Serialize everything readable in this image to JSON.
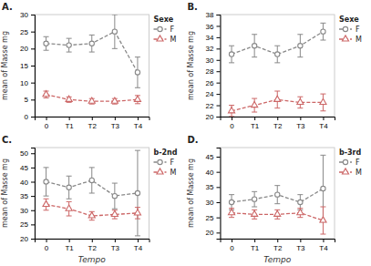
{
  "chart_data": [
    {
      "type": "line",
      "title": "A.",
      "y_label": "mean of Masse mg",
      "legend_title": "Sexe",
      "legend": "upper right",
      "grid": false,
      "categories": [
        "0",
        "T1",
        "T2",
        "T3",
        "T4"
      ],
      "ylim": [
        0,
        30
      ],
      "yticks": [
        0,
        5,
        10,
        15,
        20,
        25,
        30
      ],
      "series": [
        {
          "name": "F",
          "color": "#888888",
          "marker": "circle",
          "line_style": "dashed",
          "values": [
            21.5,
            21.0,
            21.5,
            25.0,
            13.0
          ],
          "errors": [
            2.0,
            2.0,
            2.5,
            5.0,
            4.5
          ]
        },
        {
          "name": "M",
          "color": "#cc6666",
          "marker": "triangle",
          "line_style": "dashed",
          "values": [
            6.5,
            5.0,
            4.5,
            4.5,
            5.0
          ],
          "errors": [
            1.0,
            0.8,
            0.8,
            0.8,
            1.2
          ]
        }
      ]
    },
    {
      "type": "line",
      "title": "B.",
      "y_label": "mean of Masse mg",
      "legend_title": "Sexe",
      "legend": "upper right",
      "grid": false,
      "categories": [
        "0",
        "T1",
        "T2",
        "T3",
        "T4"
      ],
      "ylim": [
        20,
        38
      ],
      "yticks": [
        20,
        22,
        24,
        26,
        28,
        30,
        32,
        34,
        36,
        38
      ],
      "series": [
        {
          "name": "F",
          "color": "#888888",
          "marker": "circle",
          "line_style": "dashed",
          "values": [
            31.0,
            32.5,
            31.0,
            32.5,
            35.0
          ],
          "errors": [
            1.5,
            2.0,
            1.5,
            2.0,
            1.5
          ]
        },
        {
          "name": "M",
          "color": "#cc6666",
          "marker": "triangle",
          "line_style": "dashed",
          "values": [
            21.0,
            22.0,
            23.0,
            22.5,
            22.5
          ],
          "errors": [
            1.0,
            1.2,
            1.5,
            1.0,
            1.5
          ]
        }
      ]
    },
    {
      "type": "line",
      "title": "C.",
      "x_label": "Tempo",
      "y_label": "mean of Masse mg",
      "legend_title": "b-2nd",
      "legend": "upper right",
      "grid": false,
      "categories": [
        "0",
        "T1",
        "T2",
        "T3",
        "T4"
      ],
      "ylim": [
        20,
        52
      ],
      "yticks": [
        20,
        25,
        30,
        35,
        40,
        45,
        50
      ],
      "series": [
        {
          "name": "F",
          "color": "#888888",
          "marker": "circle",
          "line_style": "dashed",
          "values": [
            40.0,
            38.0,
            40.5,
            35.0,
            36.0
          ],
          "errors": [
            5.0,
            4.0,
            4.5,
            4.5,
            15.0
          ]
        },
        {
          "name": "M",
          "color": "#cc6666",
          "marker": "triangle",
          "line_style": "dashed",
          "values": [
            32.0,
            30.5,
            28.0,
            28.5,
            29.0
          ],
          "errors": [
            2.0,
            2.5,
            1.5,
            1.5,
            2.0
          ]
        }
      ]
    },
    {
      "type": "line",
      "title": "D.",
      "x_label": "Tempo",
      "y_label": "mean of Masse mg",
      "legend_title": "b-3rd",
      "legend": "upper right",
      "grid": false,
      "categories": [
        "0",
        "T1",
        "T2",
        "T3",
        "T4"
      ],
      "ylim": [
        18,
        48
      ],
      "yticks": [
        20,
        25,
        30,
        35,
        40,
        45
      ],
      "series": [
        {
          "name": "F",
          "color": "#888888",
          "marker": "circle",
          "line_style": "dashed",
          "values": [
            30.0,
            31.0,
            32.5,
            30.0,
            34.5
          ],
          "errors": [
            2.5,
            2.5,
            3.0,
            2.5,
            11.0
          ]
        },
        {
          "name": "M",
          "color": "#cc6666",
          "marker": "triangle",
          "line_style": "dashed",
          "values": [
            26.5,
            26.0,
            26.0,
            26.5,
            24.0
          ],
          "errors": [
            1.5,
            1.5,
            1.5,
            1.5,
            4.5
          ]
        }
      ]
    }
  ]
}
